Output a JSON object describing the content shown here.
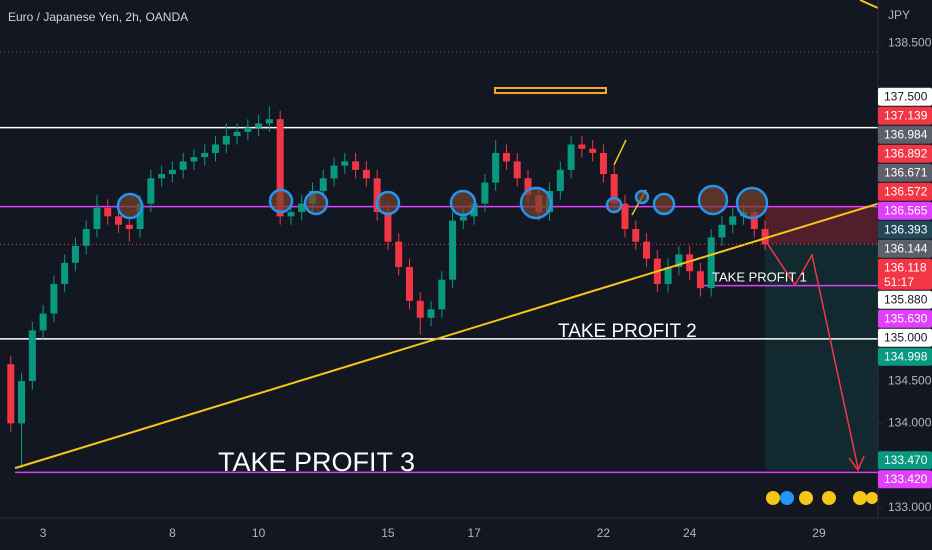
{
  "chart_data": {
    "type": "candlestick",
    "title": "Euro / Japanese Yen, 2h, OANDA",
    "currency": "JPY",
    "up_color": "#089981",
    "down_color": "#f23645",
    "xlim": [
      -1,
      19.37
    ],
    "ylim": [
      132.88,
      139.01
    ],
    "xticks": [
      {
        "value": 0,
        "label": "3"
      },
      {
        "value": 3,
        "label": "8"
      },
      {
        "value": 5,
        "label": "10"
      },
      {
        "value": 8,
        "label": "15"
      },
      {
        "value": 10,
        "label": "17"
      },
      {
        "value": 13,
        "label": "22"
      },
      {
        "value": 15,
        "label": "24"
      },
      {
        "value": 18,
        "label": "29"
      }
    ],
    "yticks": [
      {
        "value": 138.5,
        "label": "138.500"
      },
      {
        "value": 134.5,
        "label": "134.500"
      },
      {
        "value": 134.0,
        "label": "134.000"
      },
      {
        "value": 133.0,
        "label": "133.000"
      }
    ],
    "x": [
      -0.75,
      -0.5,
      -0.25,
      0,
      0.25,
      0.5,
      0.75,
      1,
      1.25,
      1.5,
      1.75,
      2,
      2.25,
      2.5,
      2.75,
      3,
      3.25,
      3.5,
      3.75,
      4,
      4.25,
      4.5,
      4.75,
      5,
      5.25,
      5.5,
      5.75,
      6,
      6.25,
      6.5,
      6.75,
      7,
      7.25,
      7.5,
      7.75,
      8,
      8.25,
      8.5,
      8.75,
      9,
      9.25,
      9.5,
      9.75,
      10,
      10.25,
      10.5,
      10.75,
      11,
      11.25,
      11.5,
      11.75,
      12,
      12.25,
      12.5,
      12.75,
      13,
      13.25,
      13.5,
      13.75,
      14,
      14.25,
      14.5,
      14.75,
      15,
      15.25,
      15.5,
      15.75,
      16,
      16.25,
      16.5,
      16.75
    ],
    "open": [
      134.7,
      134.0,
      134.5,
      135.1,
      135.3,
      135.65,
      135.9,
      136.1,
      136.3,
      136.55,
      136.45,
      136.35,
      136.3,
      136.6,
      136.9,
      136.95,
      137.0,
      137.1,
      137.15,
      137.2,
      137.3,
      137.4,
      137.45,
      137.5,
      137.55,
      137.6,
      136.45,
      136.5,
      136.6,
      136.75,
      136.9,
      137.05,
      137.1,
      137.0,
      136.9,
      136.5,
      136.15,
      135.85,
      135.45,
      135.25,
      135.35,
      135.7,
      136.4,
      136.45,
      136.6,
      136.85,
      137.2,
      137.1,
      136.9,
      136.7,
      136.5,
      136.75,
      137.0,
      137.3,
      137.25,
      137.2,
      136.95,
      136.6,
      136.3,
      136.15,
      135.95,
      135.65,
      135.85,
      136.0,
      135.8,
      135.6,
      136.2,
      136.35,
      136.45,
      136.5,
      136.3
    ],
    "high": [
      134.8,
      134.6,
      135.2,
      135.4,
      135.75,
      136.0,
      136.2,
      136.4,
      136.7,
      136.65,
      136.55,
      136.45,
      136.7,
      137.0,
      137.05,
      137.1,
      137.2,
      137.25,
      137.3,
      137.4,
      137.55,
      137.55,
      137.6,
      137.65,
      137.75,
      137.7,
      136.6,
      136.7,
      136.85,
      137.0,
      137.15,
      137.2,
      137.2,
      137.1,
      137.0,
      136.6,
      136.25,
      135.95,
      135.55,
      135.45,
      135.8,
      136.5,
      136.55,
      136.7,
      136.95,
      137.35,
      137.3,
      137.2,
      137.0,
      136.8,
      136.85,
      137.1,
      137.4,
      137.4,
      137.35,
      137.3,
      137.05,
      136.7,
      136.4,
      136.25,
      136.05,
      135.95,
      136.1,
      136.1,
      135.9,
      136.3,
      136.45,
      136.55,
      136.6,
      136.6,
      136.4
    ],
    "low": [
      133.9,
      133.47,
      134.4,
      135.0,
      135.2,
      135.55,
      135.8,
      136.0,
      136.2,
      136.35,
      136.25,
      136.15,
      136.2,
      136.5,
      136.8,
      136.85,
      136.9,
      137.0,
      137.05,
      137.1,
      137.2,
      137.3,
      137.35,
      137.4,
      137.45,
      136.35,
      136.35,
      136.4,
      136.5,
      136.65,
      136.8,
      136.95,
      136.9,
      136.8,
      136.4,
      136.05,
      135.75,
      135.35,
      135.05,
      135.15,
      135.25,
      135.6,
      136.3,
      136.35,
      136.5,
      136.75,
      137.0,
      136.8,
      136.6,
      136.4,
      136.4,
      136.65,
      136.9,
      137.15,
      137.1,
      136.85,
      136.5,
      136.2,
      136.05,
      135.85,
      135.55,
      135.55,
      135.75,
      135.7,
      135.5,
      135.5,
      136.1,
      136.25,
      136.35,
      136.2,
      136.05
    ],
    "close": [
      134.0,
      134.5,
      135.1,
      135.3,
      135.65,
      135.9,
      136.1,
      136.3,
      136.55,
      136.45,
      136.35,
      136.3,
      136.6,
      136.9,
      136.95,
      137.0,
      137.1,
      137.15,
      137.2,
      137.3,
      137.4,
      137.45,
      137.5,
      137.55,
      137.6,
      136.45,
      136.5,
      136.6,
      136.75,
      136.9,
      137.05,
      137.1,
      137.0,
      136.9,
      136.5,
      136.15,
      135.85,
      135.45,
      135.25,
      135.35,
      135.7,
      136.4,
      136.45,
      136.6,
      136.85,
      137.2,
      137.1,
      136.9,
      136.7,
      136.5,
      136.75,
      137.0,
      137.3,
      137.25,
      137.2,
      136.95,
      136.6,
      136.3,
      136.15,
      135.95,
      135.65,
      135.85,
      136.0,
      135.8,
      135.6,
      136.2,
      136.35,
      136.45,
      136.5,
      136.3,
      136.118
    ],
    "levels": [
      {
        "value": 137.5,
        "color": "#ffffff",
        "x_start": -1
      },
      {
        "value": 136.565,
        "color": "#e040fb",
        "x_start": -1
      },
      {
        "value": 135.63,
        "color": "#e040fb",
        "x_start": 15.25
      },
      {
        "value": 135.0,
        "color": "#ffffff",
        "x_start": -1
      },
      {
        "value": 133.42,
        "color": "#e040fb",
        "x_start": -0.65
      }
    ],
    "trendline": {
      "color": "#f5c518",
      "x": [
        -0.65,
        19.37
      ],
      "y": [
        133.47,
        136.6
      ]
    },
    "price_labels": [
      {
        "value": 137.5,
        "label": "137.500",
        "color": "#ffffff"
      },
      {
        "value": 137.139,
        "label": "137.139",
        "color": "#f23645"
      },
      {
        "value": 136.984,
        "label": "136.984",
        "color": "#5d606b"
      },
      {
        "value": 136.892,
        "label": "136.892",
        "color": "#f23645"
      },
      {
        "value": 136.671,
        "label": "136.671",
        "color": "#5d606b"
      },
      {
        "value": 136.572,
        "label": "136.572",
        "color": "#f23645"
      },
      {
        "value": 136.565,
        "label": "136.565",
        "color": "#e040fb"
      },
      {
        "value": 136.393,
        "label": "136.393",
        "color": "#22485a"
      },
      {
        "value": 136.144,
        "label": "136.144",
        "color": "#5d606b"
      },
      {
        "value": 136.118,
        "label": "136.118",
        "color": "#f23645",
        "countdown": "51:17"
      },
      {
        "value": 135.88,
        "label": "135.880",
        "color": "#ffffff"
      },
      {
        "value": 135.63,
        "label": "135.630",
        "color": "#e040fb"
      },
      {
        "value": 135.0,
        "label": "135.000",
        "color": "#ffffff"
      },
      {
        "value": 134.998,
        "label": "134.998",
        "color": "#089981"
      },
      {
        "value": 133.47,
        "label": "133.470",
        "color": "#089981"
      },
      {
        "value": 133.42,
        "label": "133.420",
        "color": "#e040fb"
      }
    ],
    "annotations": [
      "TAKE PROFIT 1",
      "TAKE PROFIT 2",
      "TAKE PROFIT 3"
    ]
  }
}
